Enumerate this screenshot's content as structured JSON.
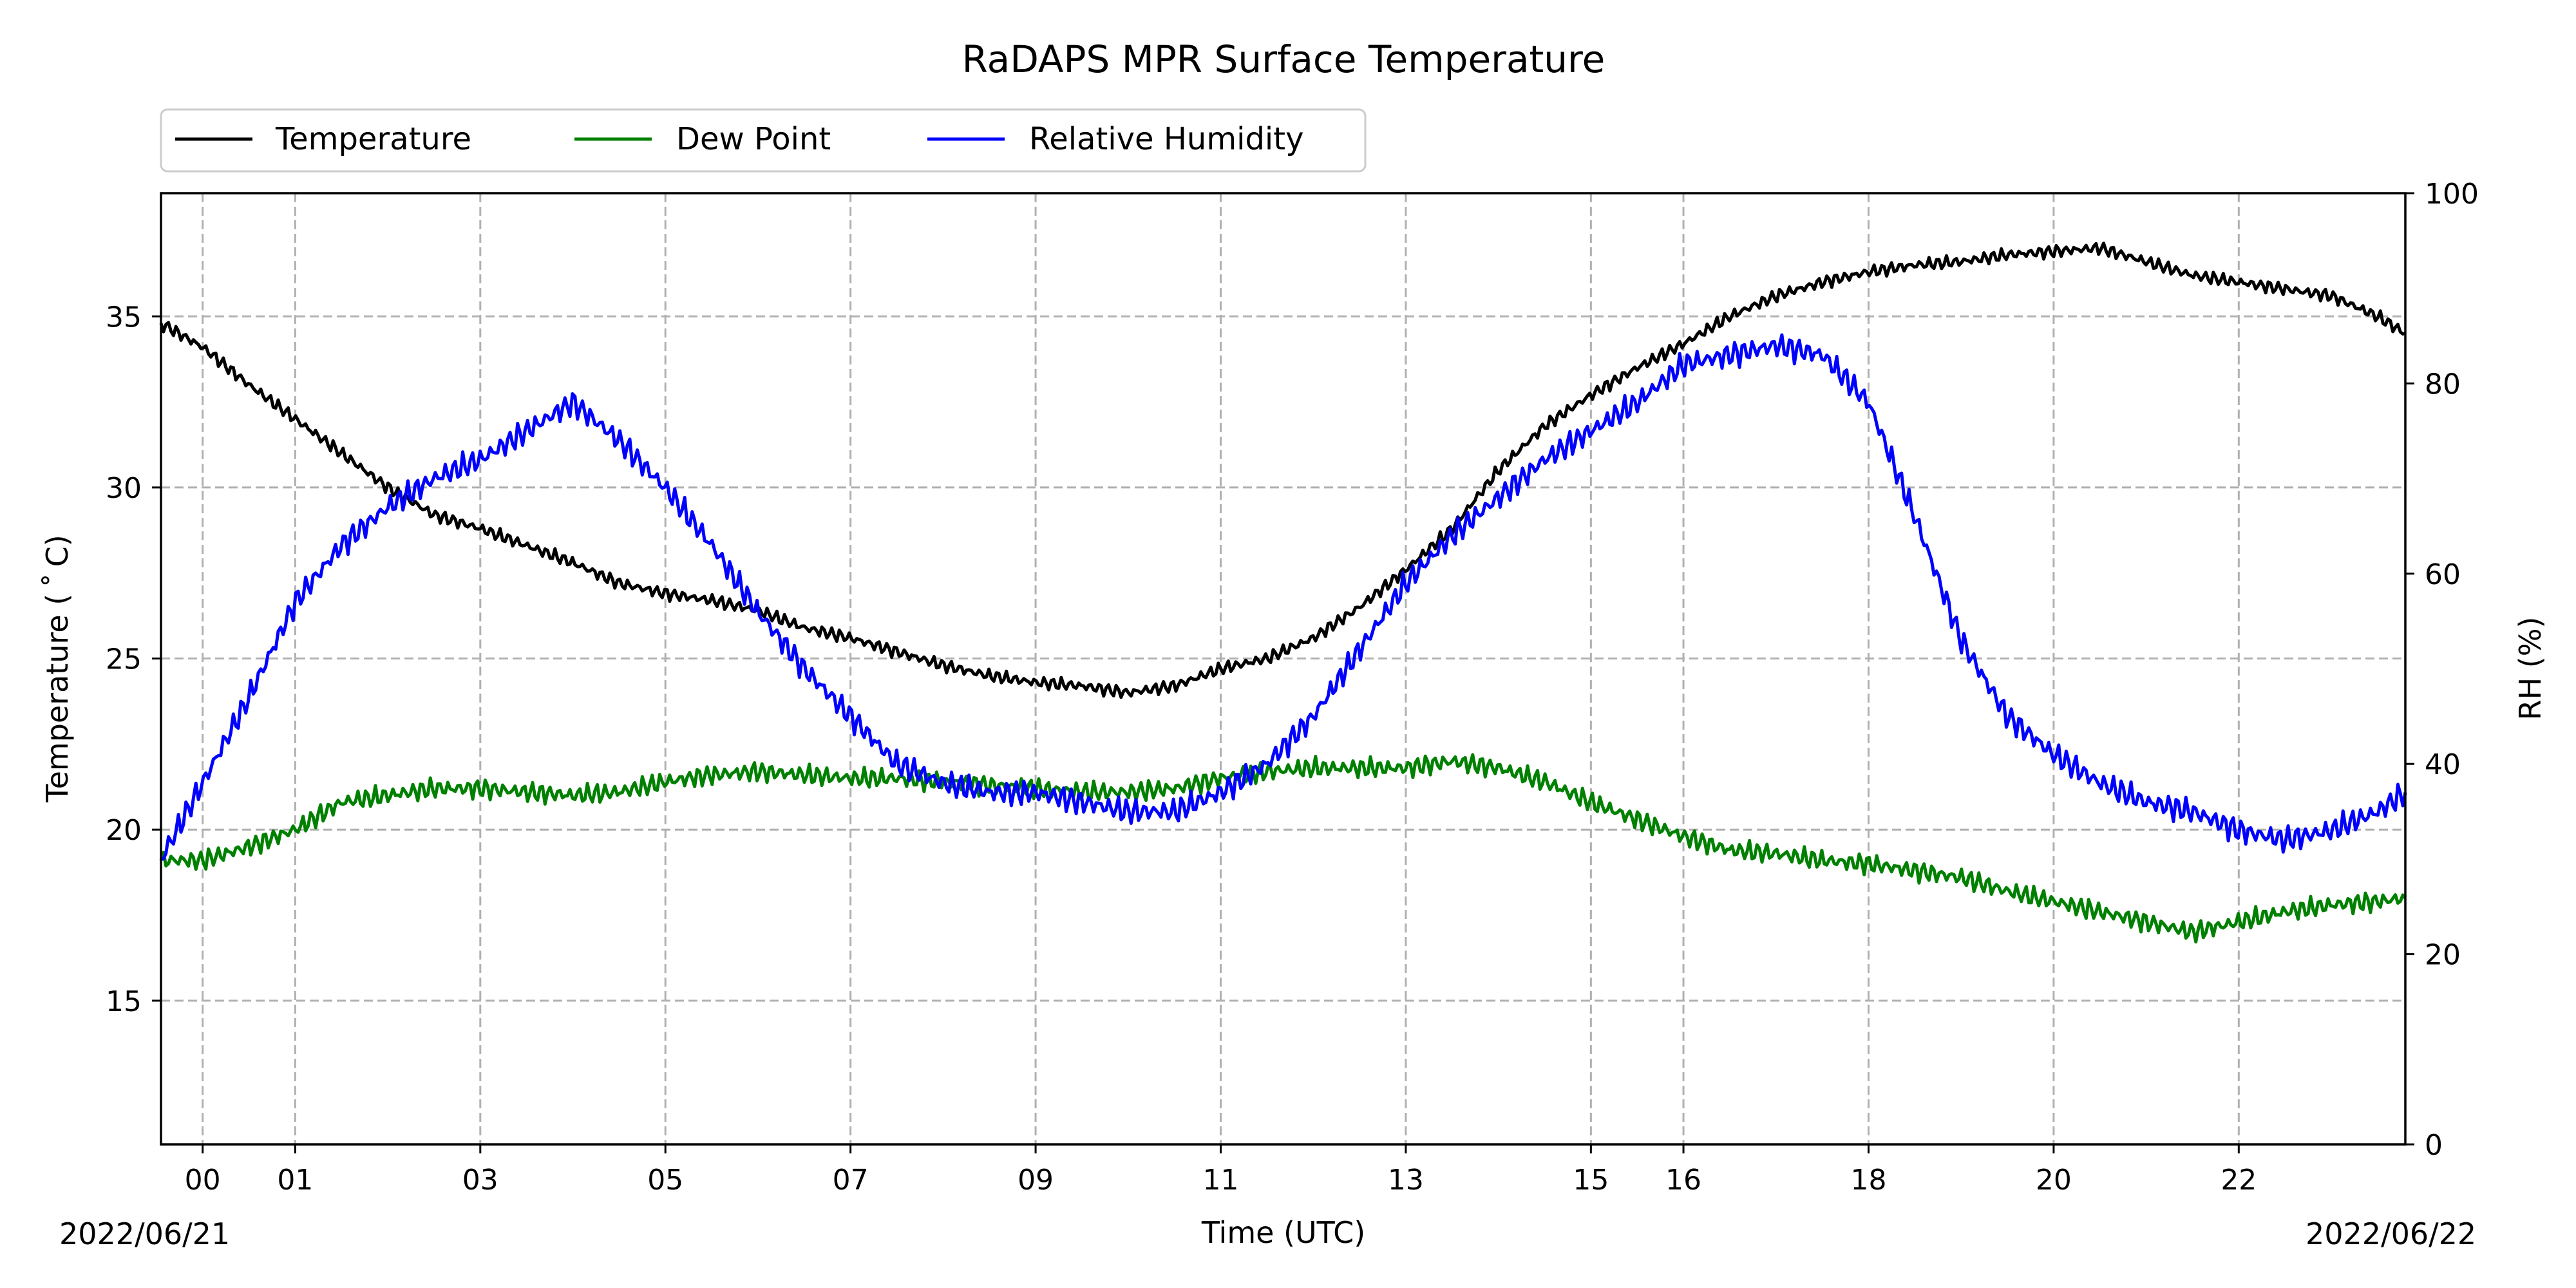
{
  "chart_data": {
    "type": "line",
    "title": "RaDAPS MPR Surface Temperature",
    "xlabel": "Time (UTC)",
    "ylabel": "Temperature ($^\\circ$C)",
    "ylabel_display": "Temperature ( ˚ C)",
    "y2label": "RH (%)",
    "date_start_label": "2022/06/21",
    "date_end_label": "2022/06/22",
    "x_tick_labels": [
      "00",
      "01",
      "03",
      "05",
      "07",
      "09",
      "11",
      "13",
      "15",
      "16",
      "18",
      "20",
      "22"
    ],
    "x_tick_hours": [
      0,
      1,
      3,
      5,
      7,
      9,
      11,
      13,
      15,
      16,
      18,
      20,
      22
    ],
    "xlim": [
      -0.45,
      23.8
    ],
    "ylim": [
      10.8,
      38.6
    ],
    "y_ticks": [
      15,
      20,
      25,
      30,
      35
    ],
    "y2lim": [
      0,
      100
    ],
    "y2_ticks": [
      0,
      20,
      40,
      60,
      80,
      100
    ],
    "grid": true,
    "legend_placement": "top-left, above axes",
    "colors": {
      "Temperature": "#000000",
      "Dew Point": "#008000",
      "Relative Humidity": "#0000ff"
    },
    "series": [
      {
        "name": "Temperature",
        "axis": "left",
        "x": [
          -0.45,
          0,
          0.5,
          1,
          1.5,
          2,
          2.5,
          3,
          3.5,
          4,
          4.5,
          5,
          5.5,
          6,
          6.5,
          7,
          7.5,
          8,
          8.5,
          9,
          9.5,
          10,
          10.5,
          11,
          11.5,
          12,
          12.5,
          13,
          13.5,
          14,
          14.5,
          15,
          15.5,
          16,
          16.5,
          17,
          17.5,
          18,
          18.5,
          19,
          19.5,
          20,
          20.5,
          21,
          21.5,
          22,
          22.5,
          23,
          23.5,
          23.8
        ],
        "y": [
          34.8,
          34.1,
          33.0,
          32.0,
          31.0,
          30.0,
          29.2,
          28.8,
          28.3,
          27.8,
          27.2,
          26.9,
          26.7,
          26.4,
          25.9,
          25.6,
          25.2,
          24.8,
          24.5,
          24.3,
          24.2,
          24.0,
          24.2,
          24.7,
          25.0,
          25.6,
          26.5,
          27.6,
          28.8,
          30.5,
          31.8,
          32.7,
          33.5,
          34.2,
          35.0,
          35.6,
          36.0,
          36.3,
          36.5,
          36.6,
          36.8,
          36.9,
          37.0,
          36.6,
          36.2,
          36.0,
          35.8,
          35.6,
          35.0,
          34.5
        ]
      },
      {
        "name": "Dew Point",
        "axis": "left",
        "x": [
          -0.45,
          0,
          0.5,
          1,
          1.5,
          2,
          2.5,
          3,
          3.5,
          4,
          4.5,
          5,
          5.5,
          6,
          6.5,
          7,
          7.5,
          8,
          8.5,
          9,
          9.5,
          10,
          10.5,
          11,
          11.5,
          12,
          12.5,
          13,
          13.5,
          14,
          14.5,
          15,
          15.5,
          16,
          16.5,
          17,
          17.5,
          18,
          18.5,
          19,
          19.5,
          20,
          20.5,
          21,
          21.5,
          22,
          22.5,
          23,
          23.5,
          23.8
        ],
        "y": [
          19.1,
          19.1,
          19.5,
          20.0,
          20.8,
          21.0,
          21.2,
          21.2,
          21.1,
          21.0,
          21.1,
          21.4,
          21.6,
          21.7,
          21.6,
          21.5,
          21.5,
          21.4,
          21.3,
          21.2,
          21.1,
          21.1,
          21.2,
          21.5,
          21.7,
          21.8,
          21.8,
          21.8,
          22.0,
          21.8,
          21.4,
          20.8,
          20.3,
          19.8,
          19.4,
          19.3,
          19.1,
          19.0,
          18.8,
          18.6,
          18.2,
          17.9,
          17.6,
          17.3,
          17.0,
          17.3,
          17.6,
          17.8,
          17.9,
          18.0
        ]
      },
      {
        "name": "Relative Humidity",
        "axis": "right",
        "x": [
          -0.45,
          0,
          0.5,
          1,
          1.5,
          2,
          2.5,
          3,
          3.5,
          4,
          4.5,
          5,
          5.5,
          6,
          6.5,
          7,
          7.5,
          8,
          8.5,
          9,
          9.5,
          10,
          10.5,
          11,
          11.5,
          12,
          12.5,
          13,
          13.5,
          14,
          14.5,
          15,
          15.5,
          16,
          16.5,
          17,
          17.5,
          18,
          18.5,
          19,
          19.5,
          20,
          20.5,
          21,
          21.5,
          22,
          22.5,
          23,
          23.5,
          23.8
        ],
        "y": [
          30,
          38,
          47,
          57,
          63,
          67,
          70,
          72,
          75,
          78,
          74,
          69,
          63,
          56,
          50,
          45,
          40,
          38,
          37,
          37,
          36,
          35,
          35,
          37,
          40,
          45,
          52,
          59,
          64,
          68,
          72,
          75,
          78,
          82,
          83,
          84,
          83,
          78,
          66,
          53,
          45,
          41,
          38,
          36,
          35,
          33,
          32,
          33,
          35,
          37
        ]
      }
    ]
  }
}
